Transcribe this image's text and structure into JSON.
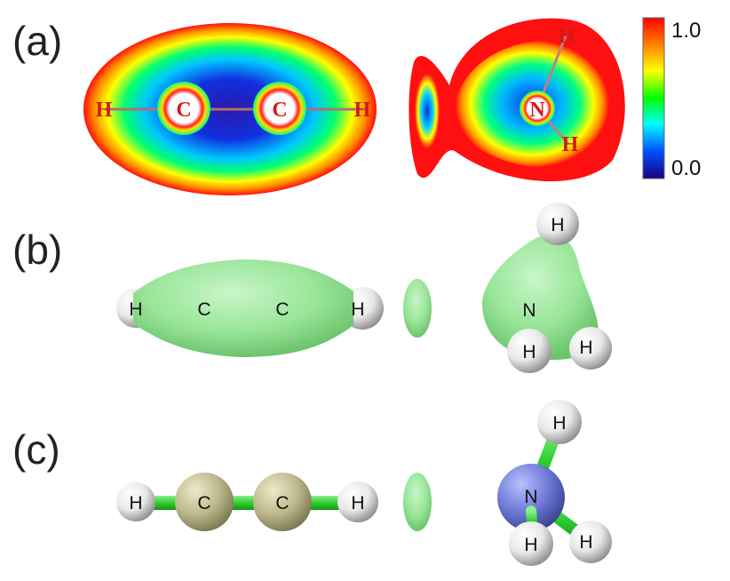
{
  "panels": [
    {
      "label": "(a)"
    },
    {
      "label": "(b)"
    },
    {
      "label": "(c)"
    }
  ],
  "colorbar": {
    "max_label": "1.0",
    "min_label": "0.0",
    "colors": [
      "#ff0000",
      "#ff8c00",
      "#ffff00",
      "#00ff00",
      "#00ffff",
      "#0050ff",
      "#1a0080"
    ]
  },
  "elf_map": {
    "acetylene_atoms": [
      "H",
      "C",
      "C",
      "H"
    ],
    "ammonia_atoms": [
      "N",
      "H",
      "H"
    ]
  },
  "isosurface": {
    "acetylene_atoms": [
      "H",
      "C",
      "C",
      "H"
    ],
    "ammonia_atoms": [
      "H",
      "N",
      "H",
      "H"
    ]
  },
  "ball_stick": {
    "acetylene_atoms": [
      "H",
      "C",
      "C",
      "H"
    ],
    "ammonia_atoms": [
      "H",
      "N",
      "H",
      "H"
    ]
  },
  "colors": {
    "isosurface": "#9be79b",
    "bond": "#3fd23f",
    "carbon": "#b8b48a",
    "nitrogen": "#6e79d6",
    "hydrogen": "#e9e9e9"
  }
}
